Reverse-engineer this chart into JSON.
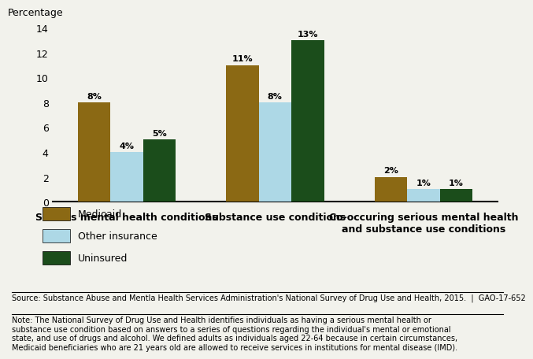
{
  "categories": [
    "Serious mental health conditions",
    "Substance use conditions",
    "Co-occuring serious mental health\nand substance use conditions"
  ],
  "series": {
    "Medicaid": [
      8,
      11,
      2
    ],
    "Other insurance": [
      4,
      8,
      1
    ],
    "Uninsured": [
      5,
      13,
      1
    ]
  },
  "colors": {
    "Medicaid": "#8B6914",
    "Other insurance": "#ADD8E6",
    "Uninsured": "#1B4D1B"
  },
  "bar_width": 0.22,
  "ylim": [
    0,
    14
  ],
  "yticks": [
    0,
    2,
    4,
    6,
    8,
    10,
    12,
    14
  ],
  "ylabel": "Percentage",
  "source_text": "Source: Substance Abuse and Mentla Health Services Administration's National Survey of Drug Use and Health, 2015.  |  GAO-17-652",
  "note_text": "Note: The National Survey of Drug Use and Health identifies individuals as having a serious mental health or\nsubstance use condition based on answers to a series of questions regarding the individual's mental or emotional\nstate, and use of drugs and alcohol. We defined adults as individuals aged 22-64 because in certain circumstances,\nMedicaid beneficiaries who are 21 years old are allowed to receive services in institutions for mental disease (IMD).",
  "bg_color": "#F2F2EC",
  "label_fontsize": 8,
  "tick_fontsize": 9,
  "cat_fontsize": 9
}
